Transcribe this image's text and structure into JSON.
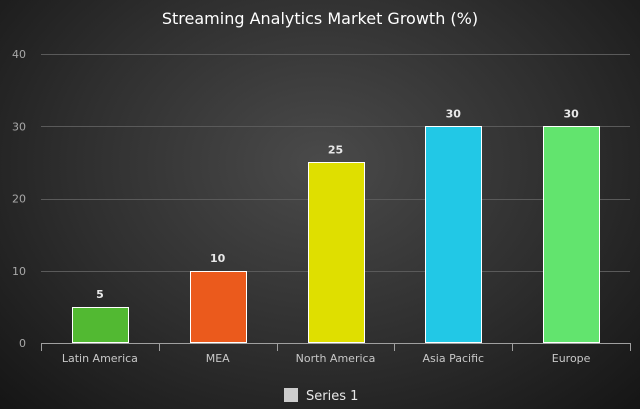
{
  "chart_data": {
    "type": "bar",
    "title": "Streaming Analytics Market Growth (%)",
    "categories": [
      "Latin America",
      "MEA",
      "North America",
      "Asia Pacific",
      "Europe"
    ],
    "series": [
      {
        "name": "Series 1",
        "values": [
          5,
          10,
          25,
          30,
          30
        ]
      }
    ],
    "bar_colors": [
      "#52b932",
      "#eb5a1c",
      "#dfdf00",
      "#22c8e6",
      "#62e46e"
    ],
    "xlabel": "",
    "ylabel": "",
    "ylim": [
      0,
      40
    ],
    "yticks": [
      0,
      10,
      20,
      30,
      40
    ],
    "grid": true,
    "data_labels": true,
    "legend": {
      "position": "bottom",
      "swatch_color": "#cccccc"
    }
  }
}
